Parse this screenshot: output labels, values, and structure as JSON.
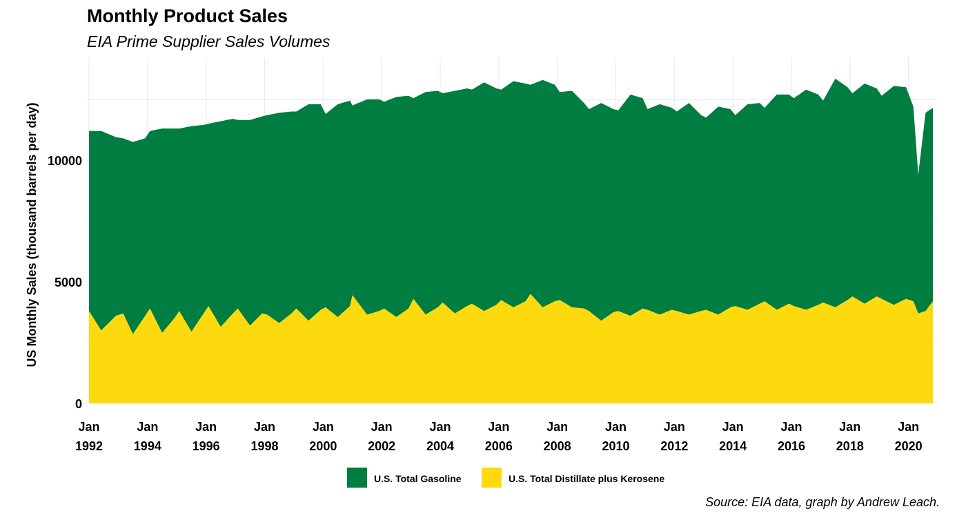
{
  "chart_data": {
    "type": "area",
    "stacked": true,
    "title": "Monthly Product Sales",
    "subtitle": "EIA Prime Supplier Sales Volumes",
    "ylabel": "US Monthly Sales (thousand barrels per day)",
    "xlabel": "",
    "caption": "Source: EIA data, graph by Andrew Leach.",
    "xlim": [
      "1992-01",
      "2020-11"
    ],
    "ylim": [
      0,
      14200
    ],
    "grid": true,
    "legend_position": "bottom",
    "y_ticks": [
      {
        "value": 0,
        "label": "0"
      },
      {
        "value": 5000,
        "label": "5000"
      },
      {
        "value": 10000,
        "label": "10000"
      }
    ],
    "x_ticks": [
      {
        "date": "1992-01",
        "label_top": "Jan",
        "label_bottom": "1992"
      },
      {
        "date": "1994-01",
        "label_top": "Jan",
        "label_bottom": "1994"
      },
      {
        "date": "1996-01",
        "label_top": "Jan",
        "label_bottom": "1996"
      },
      {
        "date": "1998-01",
        "label_top": "Jan",
        "label_bottom": "1998"
      },
      {
        "date": "2000-01",
        "label_top": "Jan",
        "label_bottom": "2000"
      },
      {
        "date": "2002-01",
        "label_top": "Jan",
        "label_bottom": "2002"
      },
      {
        "date": "2004-01",
        "label_top": "Jan",
        "label_bottom": "2004"
      },
      {
        "date": "2006-01",
        "label_top": "Jan",
        "label_bottom": "2006"
      },
      {
        "date": "2008-01",
        "label_top": "Jan",
        "label_bottom": "2008"
      },
      {
        "date": "2010-01",
        "label_top": "Jan",
        "label_bottom": "2010"
      },
      {
        "date": "2012-01",
        "label_top": "Jan",
        "label_bottom": "2012"
      },
      {
        "date": "2014-01",
        "label_top": "Jan",
        "label_bottom": "2014"
      },
      {
        "date": "2016-01",
        "label_top": "Jan",
        "label_bottom": "2016"
      },
      {
        "date": "2018-01",
        "label_top": "Jan",
        "label_bottom": "2018"
      },
      {
        "date": "2020-01",
        "label_top": "Jan",
        "label_bottom": "2020"
      }
    ],
    "series": [
      {
        "name": "U.S. Total Distillate plus Kerosene",
        "color": "#FDDA0D",
        "points": [
          [
            "1992-01",
            3800
          ],
          [
            "1992-06",
            3000
          ],
          [
            "1992-12",
            3600
          ],
          [
            "1993-03",
            3700
          ],
          [
            "1993-07",
            2850
          ],
          [
            "1993-12",
            3600
          ],
          [
            "1994-02",
            3900
          ],
          [
            "1994-07",
            2900
          ],
          [
            "1994-12",
            3500
          ],
          [
            "1995-02",
            3800
          ],
          [
            "1995-07",
            2950
          ],
          [
            "1995-12",
            3700
          ],
          [
            "1996-02",
            4000
          ],
          [
            "1996-07",
            3150
          ],
          [
            "1996-12",
            3700
          ],
          [
            "1997-02",
            3900
          ],
          [
            "1997-07",
            3200
          ],
          [
            "1997-12",
            3700
          ],
          [
            "1998-02",
            3650
          ],
          [
            "1998-07",
            3300
          ],
          [
            "1998-12",
            3700
          ],
          [
            "1999-02",
            3900
          ],
          [
            "1999-07",
            3400
          ],
          [
            "1999-12",
            3850
          ],
          [
            "2000-02",
            3950
          ],
          [
            "2000-07",
            3550
          ],
          [
            "2000-12",
            4000
          ],
          [
            "2001-01",
            4450
          ],
          [
            "2001-07",
            3650
          ],
          [
            "2001-12",
            3800
          ],
          [
            "2002-02",
            3900
          ],
          [
            "2002-07",
            3550
          ],
          [
            "2002-12",
            3900
          ],
          [
            "2003-02",
            4300
          ],
          [
            "2003-07",
            3650
          ],
          [
            "2003-12",
            3950
          ],
          [
            "2004-02",
            4150
          ],
          [
            "2004-07",
            3700
          ],
          [
            "2004-12",
            4000
          ],
          [
            "2005-02",
            4100
          ],
          [
            "2005-07",
            3800
          ],
          [
            "2005-12",
            4050
          ],
          [
            "2006-02",
            4250
          ],
          [
            "2006-07",
            3950
          ],
          [
            "2006-12",
            4200
          ],
          [
            "2007-02",
            4500
          ],
          [
            "2007-07",
            3950
          ],
          [
            "2007-12",
            4200
          ],
          [
            "2008-02",
            4250
          ],
          [
            "2008-07",
            3950
          ],
          [
            "2008-12",
            3900
          ],
          [
            "2009-02",
            3800
          ],
          [
            "2009-07",
            3400
          ],
          [
            "2009-12",
            3750
          ],
          [
            "2010-02",
            3800
          ],
          [
            "2010-07",
            3600
          ],
          [
            "2010-12",
            3900
          ],
          [
            "2011-02",
            3850
          ],
          [
            "2011-07",
            3650
          ],
          [
            "2011-12",
            3850
          ],
          [
            "2012-02",
            3800
          ],
          [
            "2012-07",
            3650
          ],
          [
            "2012-12",
            3800
          ],
          [
            "2013-02",
            3850
          ],
          [
            "2013-07",
            3650
          ],
          [
            "2013-12",
            3950
          ],
          [
            "2014-02",
            4000
          ],
          [
            "2014-07",
            3850
          ],
          [
            "2014-12",
            4100
          ],
          [
            "2015-02",
            4200
          ],
          [
            "2015-07",
            3850
          ],
          [
            "2015-12",
            4100
          ],
          [
            "2016-02",
            4000
          ],
          [
            "2016-07",
            3850
          ],
          [
            "2016-12",
            4050
          ],
          [
            "2017-02",
            4150
          ],
          [
            "2017-07",
            3950
          ],
          [
            "2017-12",
            4250
          ],
          [
            "2018-02",
            4400
          ],
          [
            "2018-07",
            4100
          ],
          [
            "2018-12",
            4400
          ],
          [
            "2019-02",
            4300
          ],
          [
            "2019-07",
            4050
          ],
          [
            "2019-12",
            4300
          ],
          [
            "2020-03",
            4200
          ],
          [
            "2020-05",
            3700
          ],
          [
            "2020-08",
            3800
          ],
          [
            "2020-11",
            4200
          ]
        ]
      },
      {
        "name": "U.S. Total Gasoline",
        "color": "#007D40",
        "points": [
          [
            "1992-01",
            7400
          ],
          [
            "1992-06",
            8200
          ],
          [
            "1992-12",
            7350
          ],
          [
            "1993-03",
            7200
          ],
          [
            "1993-07",
            7900
          ],
          [
            "1993-12",
            7300
          ],
          [
            "1994-02",
            7300
          ],
          [
            "1994-07",
            8400
          ],
          [
            "1994-12",
            7800
          ],
          [
            "1995-02",
            7500
          ],
          [
            "1995-07",
            8450
          ],
          [
            "1995-12",
            7750
          ],
          [
            "1996-02",
            7500
          ],
          [
            "1996-07",
            8450
          ],
          [
            "1996-12",
            8000
          ],
          [
            "1997-02",
            7750
          ],
          [
            "1997-07",
            8450
          ],
          [
            "1997-12",
            8100
          ],
          [
            "1998-02",
            8200
          ],
          [
            "1998-07",
            8650
          ],
          [
            "1998-12",
            8300
          ],
          [
            "1999-02",
            8100
          ],
          [
            "1999-07",
            8900
          ],
          [
            "1999-12",
            8450
          ],
          [
            "2000-02",
            7950
          ],
          [
            "2000-07",
            8750
          ],
          [
            "2000-12",
            8450
          ],
          [
            "2001-01",
            7800
          ],
          [
            "2001-07",
            8850
          ],
          [
            "2001-12",
            8700
          ],
          [
            "2002-02",
            8500
          ],
          [
            "2002-07",
            9050
          ],
          [
            "2002-12",
            8750
          ],
          [
            "2003-02",
            8250
          ],
          [
            "2003-07",
            9150
          ],
          [
            "2003-12",
            8900
          ],
          [
            "2004-02",
            8600
          ],
          [
            "2004-07",
            9150
          ],
          [
            "2004-12",
            8950
          ],
          [
            "2005-02",
            8800
          ],
          [
            "2005-07",
            9400
          ],
          [
            "2005-12",
            8900
          ],
          [
            "2006-02",
            8650
          ],
          [
            "2006-07",
            9300
          ],
          [
            "2006-12",
            8950
          ],
          [
            "2007-02",
            8600
          ],
          [
            "2007-07",
            9350
          ],
          [
            "2007-12",
            8900
          ],
          [
            "2008-02",
            8550
          ],
          [
            "2008-07",
            8900
          ],
          [
            "2008-12",
            8450
          ],
          [
            "2009-02",
            8300
          ],
          [
            "2009-07",
            8950
          ],
          [
            "2009-12",
            8350
          ],
          [
            "2010-02",
            8250
          ],
          [
            "2010-07",
            9100
          ],
          [
            "2010-12",
            8650
          ],
          [
            "2011-02",
            8250
          ],
          [
            "2011-07",
            8650
          ],
          [
            "2011-12",
            8300
          ],
          [
            "2012-02",
            8200
          ],
          [
            "2012-07",
            8700
          ],
          [
            "2012-12",
            8050
          ],
          [
            "2013-02",
            7900
          ],
          [
            "2013-07",
            8550
          ],
          [
            "2013-12",
            8150
          ],
          [
            "2014-02",
            7850
          ],
          [
            "2014-07",
            8450
          ],
          [
            "2014-12",
            8250
          ],
          [
            "2015-02",
            7950
          ],
          [
            "2015-07",
            8850
          ],
          [
            "2015-12",
            8600
          ],
          [
            "2016-02",
            8550
          ],
          [
            "2016-07",
            9050
          ],
          [
            "2016-12",
            8650
          ],
          [
            "2017-02",
            8300
          ],
          [
            "2017-07",
            9400
          ],
          [
            "2017-12",
            8750
          ],
          [
            "2018-02",
            8350
          ],
          [
            "2018-07",
            9050
          ],
          [
            "2018-12",
            8550
          ],
          [
            "2019-02",
            8350
          ],
          [
            "2019-07",
            9000
          ],
          [
            "2019-12",
            8700
          ],
          [
            "2020-03",
            8000
          ],
          [
            "2020-05",
            5700
          ],
          [
            "2020-08",
            8150
          ],
          [
            "2020-11",
            7950
          ]
        ]
      }
    ],
    "legend": [
      {
        "name": "U.S. Total Gasoline",
        "color": "#007D40"
      },
      {
        "name": "U.S. Total Distillate plus Kerosene",
        "color": "#FDDA0D"
      }
    ]
  }
}
